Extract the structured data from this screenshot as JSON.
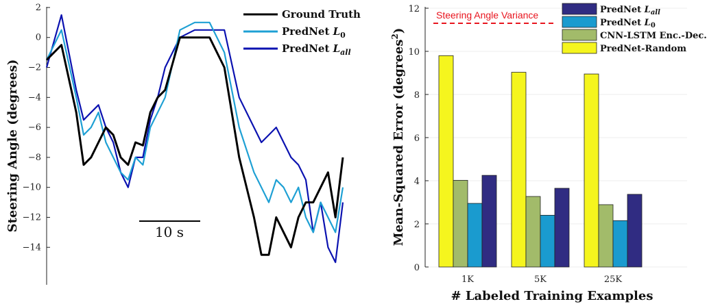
{
  "chart_data": [
    {
      "type": "line",
      "ylabel": "Steering Angle (degrees)",
      "ylim": [
        -16.5,
        2.5
      ],
      "yticks": [
        "2",
        "0",
        "−2",
        "−4",
        "−6",
        "−8",
        "−10",
        "−12",
        "−14"
      ],
      "ytick_values": [
        2,
        0,
        -2,
        -4,
        -6,
        -8,
        -10,
        -12,
        -14
      ],
      "time_seconds": [
        0,
        2,
        4,
        5,
        6,
        7,
        8,
        9,
        10,
        11,
        12,
        13,
        14,
        15,
        16,
        18,
        20,
        22,
        24,
        26,
        28,
        29,
        30,
        31,
        32,
        33,
        34,
        35,
        36,
        37,
        38,
        39,
        40
      ],
      "scale_bar": {
        "label": "10 s",
        "seconds": 10
      },
      "series": [
        {
          "name": "Ground Truth",
          "color": "#000000",
          "values": [
            -1.5,
            -0.5,
            -5,
            -8.5,
            -8,
            -7,
            -6,
            -6.5,
            -8,
            -8.5,
            -7,
            -7.2,
            -5,
            -4,
            -3.5,
            0,
            0,
            0,
            -2,
            -8,
            -12,
            -14.5,
            -14.5,
            -12,
            -13,
            -14,
            -12,
            -11,
            -11,
            -10,
            -9,
            -12,
            -8
          ]
        },
        {
          "name": "PredNet L₀",
          "color": "#1ea0d4",
          "values": [
            -1.5,
            0.5,
            -4,
            -6.5,
            -6,
            -5,
            -7,
            -8,
            -9,
            -9.5,
            -8,
            -8.5,
            -6,
            -5,
            -4,
            0.5,
            1,
            1,
            -1,
            -6,
            -9,
            -10,
            -11,
            -9.5,
            -10,
            -11,
            -10,
            -12,
            -13,
            -11,
            -12,
            -13,
            -10
          ]
        },
        {
          "name": "PredNet L_all",
          "color": "#0b12b0",
          "values": [
            -2,
            1.5,
            -3.5,
            -5.5,
            -5,
            -4.5,
            -6,
            -7,
            -9,
            -10,
            -8,
            -8,
            -5.5,
            -4,
            -2,
            0,
            0.5,
            0.5,
            0.5,
            -4,
            -6,
            -7,
            -6.5,
            -6,
            -7,
            -8,
            -8.5,
            -9.5,
            -13,
            -11,
            -14,
            -15,
            -11
          ]
        }
      ]
    },
    {
      "type": "bar",
      "xlabel": "# Labeled Training Examples",
      "ylabel": "Mean-Squared Error (degrees²)",
      "ylim": [
        0,
        12
      ],
      "yticks": [
        "0",
        "2",
        "4",
        "6",
        "8",
        "10",
        "12"
      ],
      "ytick_values": [
        0,
        2,
        4,
        6,
        8,
        10,
        12
      ],
      "categories": [
        "1K",
        "5K",
        "25K"
      ],
      "series": [
        {
          "name": "PredNet-Random",
          "color": "#f5f51e",
          "values": [
            9.8,
            9.03,
            8.95
          ]
        },
        {
          "name": "CNN-LSTM Enc.-Dec.",
          "color": "#a2bb6a",
          "values": [
            4.02,
            3.27,
            2.89
          ]
        },
        {
          "name": "PredNet L₀",
          "color": "#1a9bcf",
          "values": [
            2.95,
            2.4,
            2.15
          ]
        },
        {
          "name": "PredNet L_all",
          "color": "#302c82",
          "values": [
            4.25,
            3.65,
            3.37
          ]
        }
      ],
      "legend_order": [
        "PredNet L_all",
        "PredNet L₀",
        "CNN-LSTM Enc.-Dec.",
        "PredNet-Random"
      ],
      "legend_position": "top-right",
      "reference_line": {
        "label": "Steering Angle Variance",
        "value": 11.3,
        "color": "#e8141e"
      }
    }
  ]
}
